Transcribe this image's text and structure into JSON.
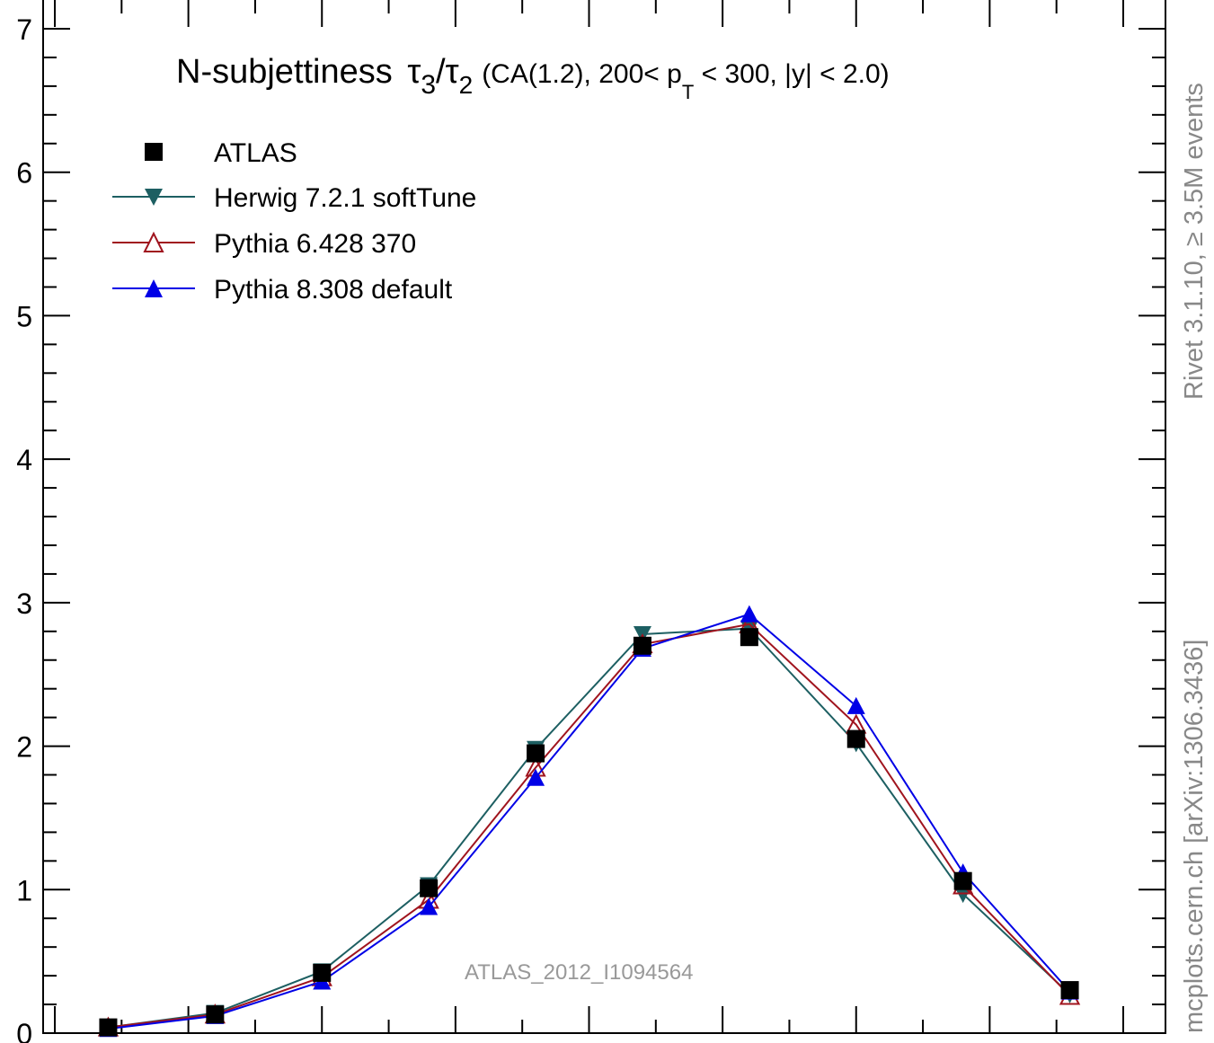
{
  "chart_data": {
    "type": "line",
    "title_main": "N-subjettiness",
    "title_tau_a": "τ",
    "title_sub_a": "3",
    "title_slash": "/",
    "title_tau_b": "τ",
    "title_sub_b": "2",
    "title_rest_1": "(CA(1.2), 200< p",
    "title_sub_T": "T",
    "title_rest_2": " < 300, |y| < 2.0)",
    "ylim": [
      0,
      7
    ],
    "y_ticks": [
      "0",
      "1",
      "2",
      "3",
      "4",
      "5",
      "6",
      "7"
    ],
    "grid": false,
    "legend_position": "top-left",
    "x_bins": [
      0.05,
      0.15,
      0.25,
      0.35,
      0.45,
      0.55,
      0.65,
      0.75,
      0.85,
      0.95
    ],
    "series": [
      {
        "name": "ATLAS",
        "marker": "square",
        "color": "#000000",
        "values": [
          0.04,
          0.13,
          0.42,
          1.01,
          1.95,
          2.7,
          2.76,
          2.05,
          1.06,
          0.3
        ]
      },
      {
        "name": "Herwig 7.2.1 softTune",
        "marker": "triangle-down",
        "color": "#1d5f62",
        "values": [
          0.04,
          0.14,
          0.43,
          1.03,
          1.98,
          2.78,
          2.82,
          2.02,
          0.97,
          0.27
        ]
      },
      {
        "name": "Pythia 6.428 370",
        "marker": "triangle-up-open",
        "color": "#a0141e",
        "values": [
          0.04,
          0.13,
          0.39,
          0.93,
          1.85,
          2.71,
          2.85,
          2.15,
          1.03,
          0.26
        ]
      },
      {
        "name": "Pythia 8.308 default",
        "marker": "triangle-up",
        "color": "#0000e6",
        "values": [
          0.03,
          0.12,
          0.36,
          0.88,
          1.78,
          2.68,
          2.92,
          2.28,
          1.12,
          0.29
        ]
      }
    ],
    "watermark": "ATLAS_2012_I1094564",
    "side_label_1": "Rivet 3.1.10, ≥ 3.5M events",
    "side_label_2": "mcplots.cern.ch [arXiv:1306.3436]"
  }
}
